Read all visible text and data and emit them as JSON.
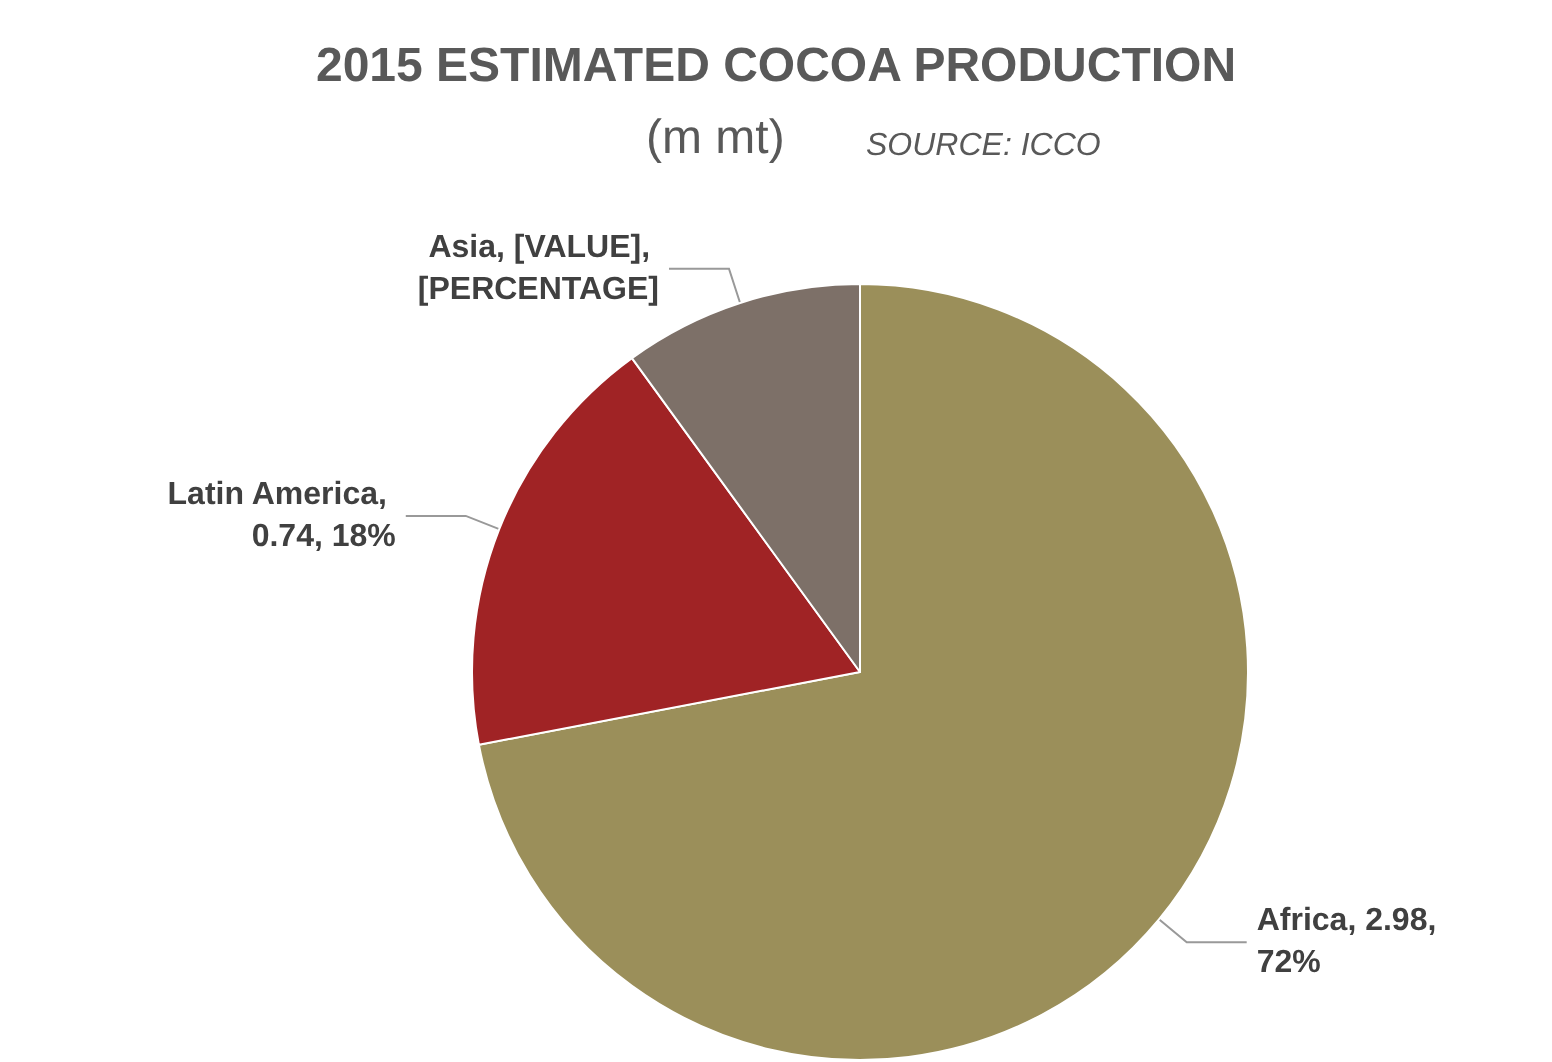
{
  "chart_data": {
    "type": "pie",
    "title": "2015 ESTIMATED COCOA PRODUCTION",
    "subtitle": "(m mt)",
    "annotations": [
      "SOURCE: ICCO"
    ],
    "categories": [
      "Africa",
      "Latin America",
      "Asia"
    ],
    "values": [
      72,
      18,
      10
    ],
    "value_labels": [
      ", 2.98, 72%",
      ", 0.74, 18%",
      ", [VALUE], [PERCENTAGE]"
    ],
    "colors": [
      "#9b8f5a",
      "#a02325",
      "#7d7068"
    ],
    "legend": false
  }
}
